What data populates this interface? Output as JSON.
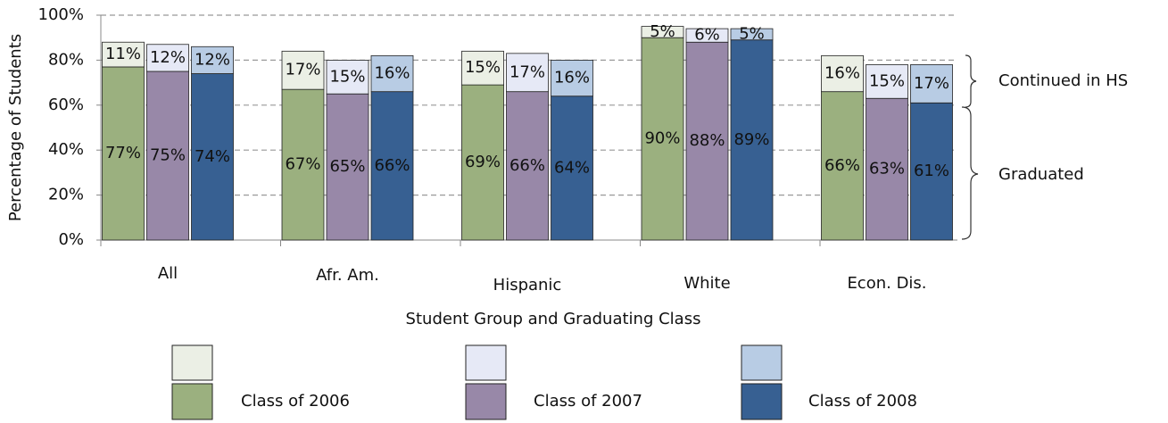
{
  "chart_data": {
    "type": "stacked-bar",
    "x_label": "Student Group and Graduating Class",
    "y_label": "Percentage of Students",
    "categories": [
      "All",
      "Afr. Am.",
      "Hispanic",
      "White",
      "Econ. Dis."
    ],
    "ylim": [
      0,
      100
    ],
    "yticks": [
      {
        "value": 0,
        "label": "0%"
      },
      {
        "value": 20,
        "label": "20%"
      },
      {
        "value": 40,
        "label": "40%"
      },
      {
        "value": 60,
        "label": "60%"
      },
      {
        "value": 80,
        "label": "80%"
      },
      {
        "value": 100,
        "label": "100%"
      }
    ],
    "grid": true,
    "series": [
      {
        "name": "Class of 2006",
        "segments": [
          {
            "color": "#9bb07f",
            "values": [
              77,
              67,
              69,
              90,
              66
            ],
            "value_labels": [
              "77%",
              "67%",
              "69%",
              "90%",
              "66%"
            ]
          },
          {
            "color": "#ebefe5",
            "values": [
              11,
              17,
              15,
              5,
              16
            ],
            "value_labels": [
              "11%",
              "17%",
              "15%",
              "5%",
              "16%"
            ]
          }
        ]
      },
      {
        "name": "Class of 2007",
        "segments": [
          {
            "color": "#9888a8",
            "values": [
              75,
              65,
              66,
              88,
              63
            ],
            "value_labels": [
              "75%",
              "65%",
              "66%",
              "88%",
              "63%"
            ]
          },
          {
            "color": "#e6e9f6",
            "values": [
              12,
              15,
              17,
              6,
              15
            ],
            "value_labels": [
              "12%",
              "15%",
              "17%",
              "6%",
              "15%"
            ]
          }
        ]
      },
      {
        "name": "Class of 2008",
        "segments": [
          {
            "color": "#376092",
            "values": [
              74,
              66,
              64,
              89,
              61
            ],
            "value_labels": [
              "74%",
              "66%",
              "64%",
              "89%",
              "61%"
            ]
          },
          {
            "color": "#b8cce4",
            "values": [
              12,
              16,
              16,
              5,
              17
            ],
            "value_labels": [
              "12%",
              "16%",
              "16%",
              "5%",
              "17%"
            ]
          }
        ]
      }
    ],
    "annotations": [
      "Continued in HS",
      "Graduated"
    ]
  }
}
